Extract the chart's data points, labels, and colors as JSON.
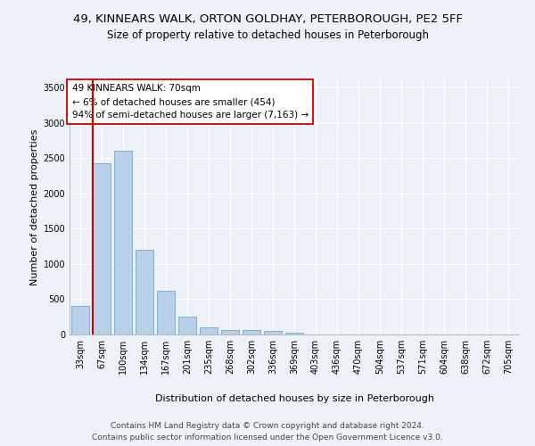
{
  "title_line1": "49, KINNEARS WALK, ORTON GOLDHAY, PETERBOROUGH, PE2 5FF",
  "title_line2": "Size of property relative to detached houses in Peterborough",
  "xlabel": "Distribution of detached houses by size in Peterborough",
  "ylabel": "Number of detached properties",
  "footer_line1": "Contains HM Land Registry data © Crown copyright and database right 2024.",
  "footer_line2": "Contains public sector information licensed under the Open Government Licence v3.0.",
  "annotation_line1": "49 KINNEARS WALK: 70sqm",
  "annotation_line2": "← 6% of detached houses are smaller (454)",
  "annotation_line3": "94% of semi-detached houses are larger (7,163) →",
  "bar_color": "#b8d0e8",
  "bar_edge_color": "#6aaad4",
  "highlight_line_color": "#cc0000",
  "categories": [
    "33sqm",
    "67sqm",
    "100sqm",
    "134sqm",
    "167sqm",
    "201sqm",
    "235sqm",
    "268sqm",
    "302sqm",
    "336sqm",
    "369sqm",
    "403sqm",
    "436sqm",
    "470sqm",
    "504sqm",
    "537sqm",
    "571sqm",
    "604sqm",
    "638sqm",
    "672sqm",
    "705sqm"
  ],
  "values": [
    400,
    2420,
    2600,
    1200,
    620,
    255,
    105,
    65,
    65,
    55,
    30,
    0,
    0,
    0,
    0,
    0,
    0,
    0,
    0,
    0,
    0
  ],
  "ylim": [
    0,
    3600
  ],
  "yticks": [
    0,
    500,
    1000,
    1500,
    2000,
    2500,
    3000,
    3500
  ],
  "background_color": "#eef2f8",
  "title_fontsize": 9.5,
  "subtitle_fontsize": 8.5,
  "ylabel_fontsize": 8,
  "xlabel_fontsize": 8,
  "tick_fontsize": 7,
  "annotation_fontsize": 7.5,
  "footer_fontsize": 6.5
}
